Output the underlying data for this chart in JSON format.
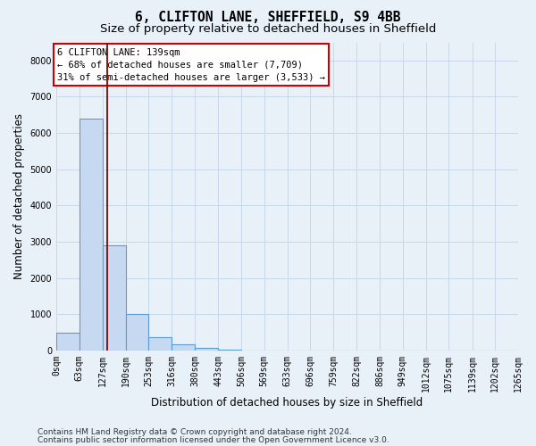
{
  "title_line1": "6, CLIFTON LANE, SHEFFIELD, S9 4BB",
  "title_line2": "Size of property relative to detached houses in Sheffield",
  "xlabel": "Distribution of detached houses by size in Sheffield",
  "ylabel": "Number of detached properties",
  "footer_line1": "Contains HM Land Registry data © Crown copyright and database right 2024.",
  "footer_line2": "Contains public sector information licensed under the Open Government Licence v3.0.",
  "annotation_title": "6 CLIFTON LANE: 139sqm",
  "annotation_line2": "← 68% of detached houses are smaller (7,709)",
  "annotation_line3": "31% of semi-detached houses are larger (3,533) →",
  "property_size": 139,
  "bin_edges": [
    0,
    63,
    127,
    190,
    253,
    316,
    380,
    443,
    506,
    569,
    633,
    696,
    759,
    822,
    886,
    949,
    1012,
    1075,
    1139,
    1202,
    1265
  ],
  "bin_labels": [
    "0sqm",
    "63sqm",
    "127sqm",
    "190sqm",
    "253sqm",
    "316sqm",
    "380sqm",
    "443sqm",
    "506sqm",
    "569sqm",
    "633sqm",
    "696sqm",
    "759sqm",
    "822sqm",
    "886sqm",
    "949sqm",
    "1012sqm",
    "1075sqm",
    "1139sqm",
    "1202sqm",
    "1265sqm"
  ],
  "bar_heights": [
    480,
    6400,
    2900,
    1000,
    370,
    160,
    70,
    30,
    5,
    0,
    0,
    0,
    0,
    0,
    0,
    0,
    0,
    0,
    0,
    0
  ],
  "bar_color": "#c6d9f0",
  "bar_edge_color": "#5b9bd5",
  "vline_color": "#8b0000",
  "ylim": [
    0,
    8500
  ],
  "yticks": [
    0,
    1000,
    2000,
    3000,
    4000,
    5000,
    6000,
    7000,
    8000
  ],
  "grid_color": "#c8d8ea",
  "background_color": "#e8f0f8",
  "axes_background_color": "#e8f0f8",
  "annotation_box_color": "#ffffff",
  "annotation_box_edge_color": "#cc0000",
  "title_fontsize": 10.5,
  "subtitle_fontsize": 9.5,
  "label_fontsize": 8.5,
  "tick_fontsize": 7,
  "footer_fontsize": 6.5
}
